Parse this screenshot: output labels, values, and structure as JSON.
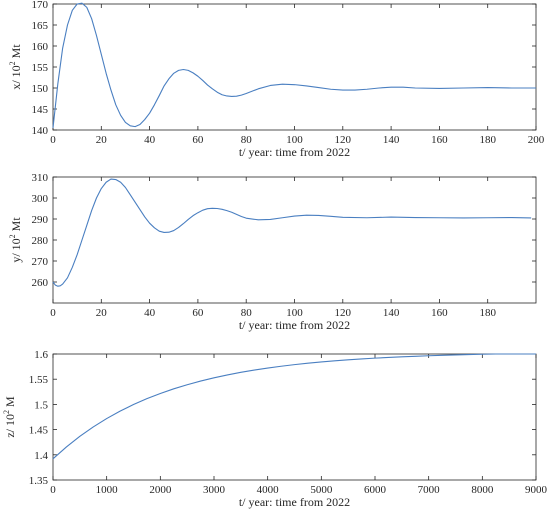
{
  "chart_data": [
    {
      "type": "line",
      "xlabel": "t/ year: time from 2022",
      "ylabel": "x/ 10",
      "ylabel_sup": "2",
      "ylabel_unit": "Mt",
      "xlim": [
        0,
        200
      ],
      "ylim": [
        140,
        170
      ],
      "xticks": [
        0,
        20,
        40,
        60,
        80,
        100,
        120,
        140,
        160,
        180,
        200
      ],
      "yticks": [
        140,
        145,
        150,
        155,
        160,
        165,
        170
      ],
      "grid": false,
      "series": [
        {
          "color": "#4a7fc1",
          "x": [
            0,
            2,
            4,
            6,
            8,
            10,
            12,
            14,
            16,
            18,
            20,
            22,
            24,
            26,
            28,
            30,
            32,
            34,
            36,
            38,
            40,
            42,
            44,
            46,
            48,
            50,
            52,
            54,
            56,
            58,
            60,
            62,
            64,
            66,
            68,
            70,
            72,
            74,
            76,
            78,
            80,
            85,
            90,
            95,
            100,
            105,
            110,
            115,
            120,
            125,
            130,
            135,
            140,
            145,
            150,
            160,
            170,
            180,
            190,
            200
          ],
          "y": [
            140.5,
            151,
            159.5,
            165,
            168.5,
            170,
            170.2,
            169.2,
            166.5,
            162.5,
            158,
            153.5,
            149.5,
            146,
            143.5,
            141.8,
            141,
            140.8,
            141.3,
            142.5,
            144,
            146,
            148.2,
            150.5,
            152.2,
            153.5,
            154.2,
            154.4,
            154.2,
            153.6,
            152.8,
            151.8,
            150.7,
            149.8,
            149,
            148.4,
            148.1,
            148,
            148.05,
            148.3,
            148.7,
            149.8,
            150.6,
            150.9,
            150.8,
            150.5,
            150.1,
            149.7,
            149.5,
            149.5,
            149.7,
            150,
            150.2,
            150.2,
            150,
            149.9,
            150,
            150.1,
            150,
            150
          ]
        }
      ]
    },
    {
      "type": "line",
      "xlabel": "t/ year: time from 2022",
      "ylabel": "y/ 10",
      "ylabel_sup": "2",
      "ylabel_unit": "Mt",
      "xlim": [
        0,
        200
      ],
      "ylim": [
        250,
        310
      ],
      "xticks": [
        0,
        20,
        40,
        60,
        80,
        100,
        120,
        140,
        160,
        180
      ],
      "yticks": [
        260,
        270,
        280,
        290,
        300,
        310
      ],
      "grid": false,
      "series": [
        {
          "color": "#4a7fc1",
          "x": [
            0,
            1,
            2,
            3,
            4,
            6,
            8,
            10,
            12,
            14,
            16,
            18,
            20,
            22,
            24,
            26,
            28,
            30,
            32,
            34,
            36,
            38,
            40,
            42,
            44,
            46,
            48,
            50,
            52,
            54,
            56,
            58,
            60,
            62,
            64,
            66,
            68,
            70,
            72,
            74,
            76,
            78,
            80,
            85,
            90,
            95,
            100,
            105,
            110,
            115,
            120,
            130,
            140,
            150,
            160,
            170,
            180,
            190,
            198
          ],
          "y": [
            260,
            258.5,
            258,
            258.2,
            259,
            262,
            267,
            273,
            280,
            287,
            294,
            300,
            304.5,
            307.5,
            309,
            308.8,
            307.5,
            305,
            301.5,
            298,
            294.5,
            291,
            288,
            285.8,
            284.2,
            283.6,
            283.7,
            284.5,
            286,
            287.8,
            289.8,
            291.6,
            293,
            294.2,
            294.9,
            295.1,
            295,
            294.6,
            294,
            293.2,
            292.2,
            291.2,
            290.4,
            289.6,
            289.8,
            290.6,
            291.4,
            291.8,
            291.7,
            291.3,
            290.8,
            290.6,
            290.9,
            290.7,
            290.6,
            290.5,
            290.6,
            290.7,
            290.5
          ]
        }
      ]
    },
    {
      "type": "line",
      "xlabel": "t/ year: time from 2022",
      "ylabel": "z/ 10",
      "ylabel_sup": "2",
      "ylabel_unit": "M",
      "xlim": [
        0,
        9000
      ],
      "ylim": [
        1.35,
        1.6
      ],
      "xticks": [
        0,
        1000,
        2000,
        3000,
        4000,
        5000,
        6000,
        7000,
        8000,
        9000
      ],
      "yticks": [
        1.35,
        1.4,
        1.45,
        1.5,
        1.55,
        1.6
      ],
      "grid": false,
      "series": [
        {
          "color": "#4a7fc1",
          "x": [
            0,
            250,
            500,
            750,
            1000,
            1250,
            1500,
            1750,
            2000,
            2250,
            2500,
            2750,
            3000,
            3250,
            3500,
            3750,
            4000,
            4250,
            4500,
            4750,
            5000,
            5250,
            5500,
            5750,
            6000,
            6250,
            6500,
            6750,
            7000,
            7250,
            7500,
            7750,
            8000,
            8250,
            8500,
            8750,
            9000
          ],
          "y": [
            1.392,
            1.4156,
            1.4366,
            1.4553,
            1.4719,
            1.4866,
            1.4997,
            1.5114,
            1.5217,
            1.5309,
            1.539,
            1.5463,
            1.5527,
            1.5585,
            1.5636,
            1.5681,
            1.5721,
            1.5757,
            1.5789,
            1.5817,
            1.5842,
            1.5865,
            1.5884,
            1.5902,
            1.5918,
            1.5932,
            1.5944,
            1.5955,
            1.5965,
            1.5974,
            1.5982,
            1.5989,
            1.5995,
            1.6,
            1.6,
            1.6,
            1.6
          ]
        }
      ]
    }
  ]
}
